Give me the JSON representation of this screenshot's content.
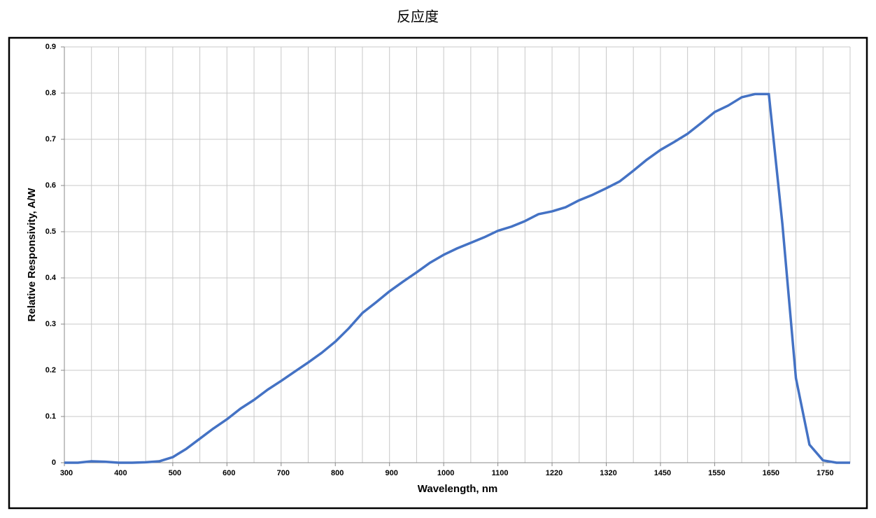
{
  "chart_data": {
    "type": "line",
    "title": "反应度",
    "x_label": "Wavelength, nm",
    "y_label": "Relative Responsivity, A/W",
    "categories": [
      "300",
      null,
      null,
      null,
      "400",
      null,
      null,
      null,
      "500",
      null,
      null,
      null,
      "600",
      null,
      null,
      null,
      "700",
      null,
      null,
      null,
      "800",
      null,
      null,
      null,
      "900",
      null,
      null,
      null,
      "1000",
      null,
      null,
      null,
      "1100",
      null,
      null,
      null,
      "1220",
      null,
      null,
      null,
      "1320",
      null,
      null,
      null,
      "1450",
      null,
      null,
      null,
      "1550",
      null,
      null,
      null,
      "1650",
      null,
      null,
      null,
      "1750",
      null,
      null
    ],
    "values": [
      0,
      0,
      0.003,
      0.002,
      0,
      0,
      0.001,
      0.003,
      0.012,
      0.03,
      0.052,
      0.074,
      0.094,
      0.117,
      0.136,
      0.158,
      0.177,
      0.197,
      0.217,
      0.238,
      0.262,
      0.291,
      0.324,
      0.347,
      0.371,
      0.392,
      0.412,
      0.433,
      0.45,
      0.464,
      0.476,
      0.488,
      0.502,
      0.511,
      0.523,
      0.538,
      0.544,
      0.553,
      0.568,
      0.58,
      0.594,
      0.609,
      0.632,
      0.656,
      0.677,
      0.694,
      0.712,
      0.735,
      0.759,
      0.773,
      0.791,
      0.798,
      0.798,
      0.517,
      0.183,
      0.039,
      0.005,
      0,
      0
    ],
    "color": "#4472c4",
    "ylim": [
      0,
      0.9
    ],
    "yticks": [
      0,
      0.1,
      0.2,
      0.3,
      0.4,
      0.5,
      0.6,
      0.7,
      0.8,
      0.9
    ],
    "grid": true
  }
}
